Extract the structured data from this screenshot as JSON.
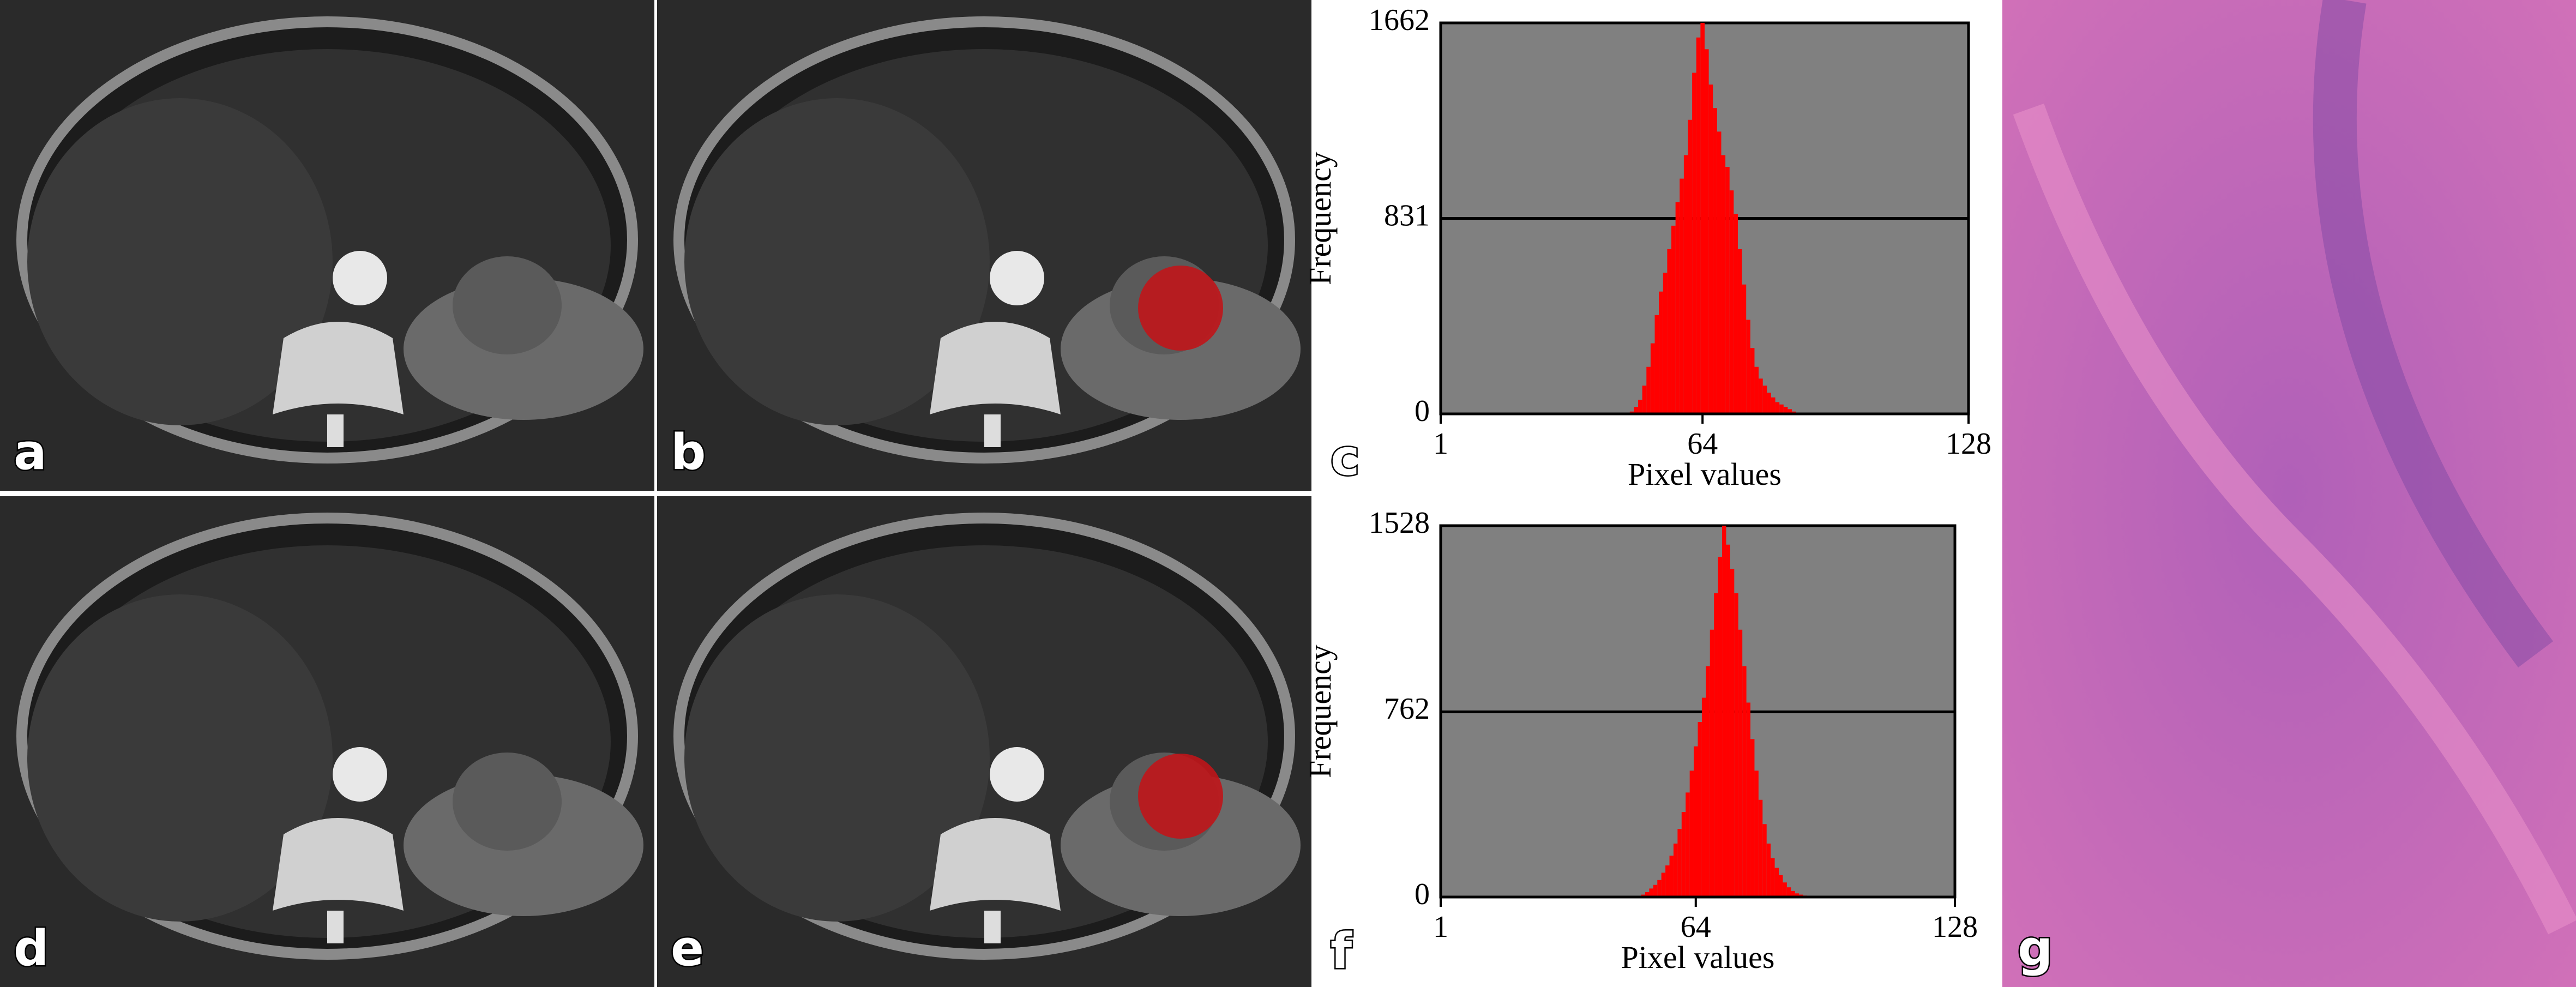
{
  "image_panels": [
    {
      "label": "a"
    },
    {
      "label": "b"
    },
    {
      "label": "d"
    },
    {
      "label": "e"
    },
    {
      "label": "g"
    }
  ],
  "chart_data": [
    {
      "type": "bar",
      "panel_label": "c",
      "xlabel": "Pixel values",
      "ylabel": "Frequency",
      "color": "#ff0000",
      "grid": true,
      "xlim": [
        1,
        128
      ],
      "xticks": [
        1,
        64,
        128
      ],
      "ylim": [
        0,
        1662
      ],
      "yticks": [
        0,
        831,
        1662
      ],
      "x": [
        47,
        48,
        49,
        50,
        51,
        52,
        53,
        54,
        55,
        56,
        57,
        58,
        59,
        60,
        61,
        62,
        63,
        64,
        65,
        66,
        67,
        68,
        69,
        70,
        71,
        72,
        73,
        74,
        75,
        76,
        77,
        78,
        79,
        80,
        81,
        82,
        83,
        84,
        85,
        86,
        87
      ],
      "values": [
        10,
        30,
        60,
        120,
        200,
        300,
        420,
        520,
        600,
        700,
        800,
        900,
        1000,
        1100,
        1250,
        1450,
        1600,
        1662,
        1550,
        1400,
        1300,
        1200,
        1100,
        1050,
        950,
        850,
        700,
        550,
        400,
        280,
        200,
        150,
        120,
        90,
        70,
        50,
        40,
        30,
        20,
        10,
        5
      ]
    },
    {
      "type": "bar",
      "panel_label": "f",
      "xlabel": "Pixel values",
      "ylabel": "Frequency",
      "color": "#ff0000",
      "grid": true,
      "xlim": [
        1,
        128
      ],
      "xticks": [
        1,
        64,
        128
      ],
      "ylim": [
        0,
        1528
      ],
      "yticks": [
        0,
        762,
        1528
      ],
      "x": [
        50,
        51,
        52,
        53,
        54,
        55,
        56,
        57,
        58,
        59,
        60,
        61,
        62,
        63,
        64,
        65,
        66,
        67,
        68,
        69,
        70,
        71,
        72,
        73,
        74,
        75,
        76,
        77,
        78,
        79,
        80,
        81,
        82,
        83,
        84,
        85,
        86,
        87,
        88,
        89,
        90,
        91,
        92
      ],
      "values": [
        5,
        10,
        20,
        35,
        50,
        70,
        100,
        130,
        170,
        220,
        280,
        350,
        430,
        520,
        620,
        720,
        820,
        950,
        1100,
        1250,
        1400,
        1528,
        1450,
        1350,
        1250,
        1100,
        950,
        800,
        650,
        520,
        400,
        300,
        220,
        160,
        120,
        90,
        60,
        40,
        25,
        15,
        10,
        6,
        3
      ]
    }
  ]
}
